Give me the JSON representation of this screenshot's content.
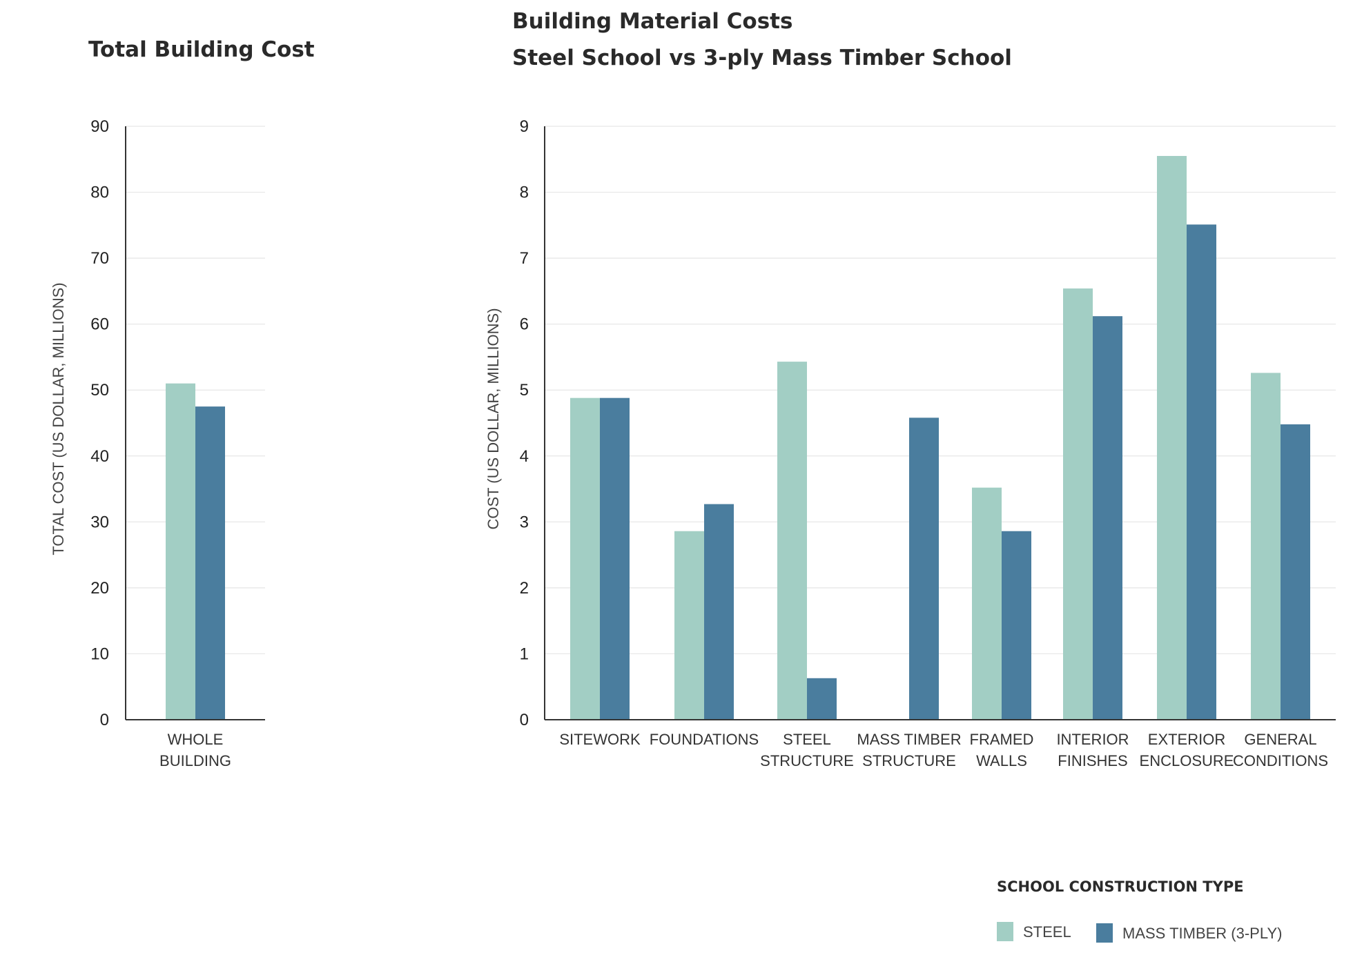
{
  "chart_data": [
    {
      "type": "bar",
      "title": "Total Building Cost",
      "ylabel": "TOTAL COST (US DOLLAR, MILLIONS)",
      "xlabel": "",
      "ylim": [
        0,
        90
      ],
      "yticks": [
        "0",
        "10",
        "20",
        "30",
        "40",
        "50",
        "60",
        "70",
        "80",
        "90"
      ],
      "categories": [
        [
          "WHOLE",
          "BUILDING"
        ]
      ],
      "series": [
        {
          "name": "STEEL",
          "values": [
            51
          ]
        },
        {
          "name": "MASS TIMBER (3-PLY)",
          "values": [
            47.5
          ]
        }
      ],
      "grid": true
    },
    {
      "type": "bar",
      "title": "Building Material Costs",
      "subtitle": "Steel School vs 3-ply Mass Timber School",
      "ylabel": "COST (US DOLLAR, MILLIONS)",
      "xlabel": "",
      "ylim": [
        0,
        9
      ],
      "yticks": [
        "0",
        "1",
        "2",
        "3",
        "4",
        "5",
        "6",
        "7",
        "8",
        "9"
      ],
      "categories": [
        [
          "SITEWORK"
        ],
        [
          "FOUNDATIONS"
        ],
        [
          "STEEL",
          "STRUCTURE"
        ],
        [
          "MASS TIMBER",
          "STRUCTURE"
        ],
        [
          "FRAMED",
          "WALLS"
        ],
        [
          "INTERIOR",
          "FINISHES"
        ],
        [
          "EXTERIOR",
          "ENCLOSURE"
        ],
        [
          "GENERAL",
          "CONDITIONS"
        ]
      ],
      "series": [
        {
          "name": "STEEL",
          "values": [
            4.88,
            2.86,
            5.43,
            0,
            3.52,
            6.54,
            8.55,
            5.26
          ]
        },
        {
          "name": "MASS TIMBER (3-PLY)",
          "values": [
            4.88,
            3.27,
            0.63,
            4.58,
            2.86,
            6.12,
            7.51,
            4.48
          ]
        }
      ],
      "grid": true
    }
  ],
  "legend": {
    "title": "SCHOOL CONSTRUCTION TYPE",
    "placement": "bottom-right",
    "items": [
      {
        "label": "STEEL",
        "color": "#a2cec4"
      },
      {
        "label": "MASS TIMBER (3-PLY)",
        "color": "#4a7d9e"
      }
    ]
  },
  "colors": {
    "steel": "#a2cec4",
    "timber": "#4a7d9e"
  }
}
